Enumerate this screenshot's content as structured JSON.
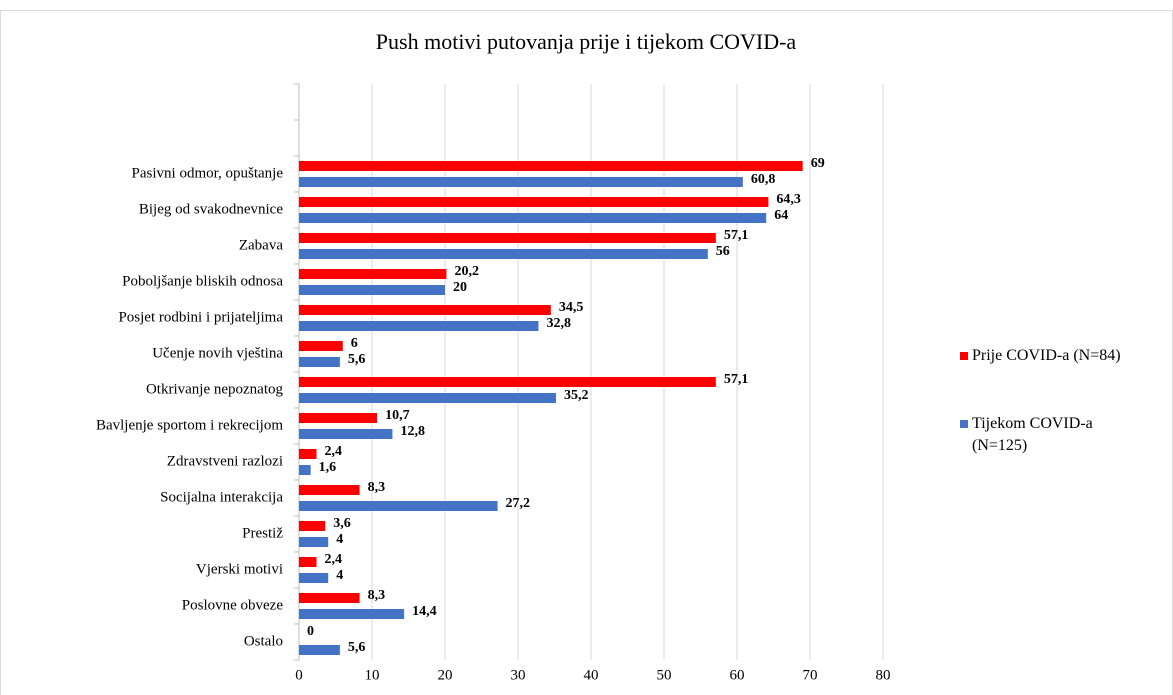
{
  "chart_data": {
    "type": "hbar",
    "title": "Push motivi putovanja prije i tijekom COVID-a",
    "categories": [
      null,
      null,
      "Pasivni odmor, opuštanje",
      "Bijeg od svakodnevnice",
      "Zabava",
      "Poboljšanje bliskih odnosa",
      "Posjet rodbini i prijateljima",
      "Učenje novih vještina",
      "Otkrivanje nepoznatog",
      "Bavljenje sportom i rekrecijom",
      "Zdravstveni razlozi",
      "Socijalna interakcija",
      "Prestiž",
      "Vjerski motivi",
      "Poslovne obveze",
      "Ostalo"
    ],
    "series": [
      {
        "name": "Prije COVID-a (N=84)",
        "color": "#ff0000",
        "values": [
          null,
          null,
          69,
          64.3,
          57.1,
          20.2,
          34.5,
          6,
          57.1,
          10.7,
          2.4,
          8.3,
          3.6,
          2.4,
          8.3,
          0
        ],
        "value_labels": [
          null,
          null,
          "69",
          "64,3",
          "57,1",
          "20,2",
          "34,5",
          "6",
          "57,1",
          "10,7",
          "2,4",
          "8,3",
          "3,6",
          "2,4",
          "8,3",
          "0"
        ]
      },
      {
        "name": "Tijekom COVID-a (N=125)",
        "color": "#4472c4",
        "values": [
          null,
          null,
          60.8,
          64,
          56,
          20,
          32.8,
          5.6,
          35.2,
          12.8,
          1.6,
          27.2,
          4,
          4,
          14.4,
          5.6
        ],
        "value_labels": [
          null,
          null,
          "60,8",
          "64",
          "56",
          "20",
          "32,8",
          "5,6",
          "35,2",
          "12,8",
          "1,6",
          "27,2",
          "4",
          "4",
          "14,4",
          "5,6"
        ]
      }
    ],
    "xlim": [
      0,
      80
    ],
    "xticks": [
      0,
      10,
      20,
      30,
      40,
      50,
      60,
      70,
      80
    ],
    "grid": true,
    "legend": "right"
  }
}
